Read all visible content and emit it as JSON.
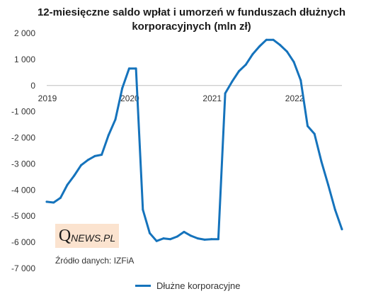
{
  "title_line1": "12-miesięczne saldo wpłat i umorzeń w funduszach dłużnych",
  "title_line2": "korporacyjnych (mln zł)",
  "logo": {
    "q": "Q",
    "rest": "NEWS.PL"
  },
  "source": "Źródło danych: IZFiA",
  "colors": {
    "line": "#1573bc",
    "logo_bg": "#fbe3cf",
    "axis": "#bfbfbf"
  },
  "chart_data": {
    "type": "line",
    "title": "12-miesięczne saldo wpłat i umorzeń w funduszach dłużnych korporacyjnych (mln zł)",
    "xlabel": "",
    "ylabel": "",
    "xlim": [
      2019,
      2022.5833
    ],
    "ylim": [
      -7000,
      2000
    ],
    "yticks": [
      2000,
      1000,
      0,
      -1000,
      -2000,
      -3000,
      -4000,
      -5000,
      -6000,
      -7000
    ],
    "ytick_labels": [
      "2 000",
      "1 000",
      "0",
      "-1 000",
      "-2 000",
      "-3 000",
      "-4 000",
      "-5 000",
      "-6 000",
      "-7 000"
    ],
    "xticks": [
      2019,
      2020,
      2021,
      2022
    ],
    "xtick_labels": [
      "2019",
      "2020",
      "2021",
      "2022"
    ],
    "grid": false,
    "legend_position": "bottom",
    "series": [
      {
        "name": "Dłużne korporacyjne",
        "x": [
          2019.0,
          2019.0833,
          2019.1667,
          2019.25,
          2019.3333,
          2019.4167,
          2019.5,
          2019.5833,
          2019.6667,
          2019.75,
          2019.8333,
          2019.9167,
          2020.0,
          2020.0833,
          2020.1667,
          2020.25,
          2020.3333,
          2020.4167,
          2020.5,
          2020.5833,
          2020.6667,
          2020.75,
          2020.8333,
          2020.9167,
          2021.0,
          2021.0833,
          2021.1667,
          2021.25,
          2021.3333,
          2021.4167,
          2021.5,
          2021.5833,
          2021.6667,
          2021.75,
          2021.8333,
          2021.9167,
          2022.0,
          2022.0833,
          2022.1667,
          2022.25,
          2022.3333,
          2022.4167,
          2022.5,
          2022.5833
        ],
        "y": [
          -4450,
          -4480,
          -4300,
          -3800,
          -3450,
          -3050,
          -2850,
          -2700,
          -2650,
          -1900,
          -1300,
          -100,
          650,
          650,
          -4750,
          -5650,
          -5950,
          -5850,
          -5880,
          -5780,
          -5600,
          -5750,
          -5850,
          -5900,
          -5880,
          -5880,
          -300,
          150,
          550,
          800,
          1200,
          1500,
          1750,
          1750,
          1550,
          1300,
          900,
          200,
          -1550,
          -1850,
          -2900,
          -3800,
          -4750,
          -5500
        ]
      }
    ]
  }
}
